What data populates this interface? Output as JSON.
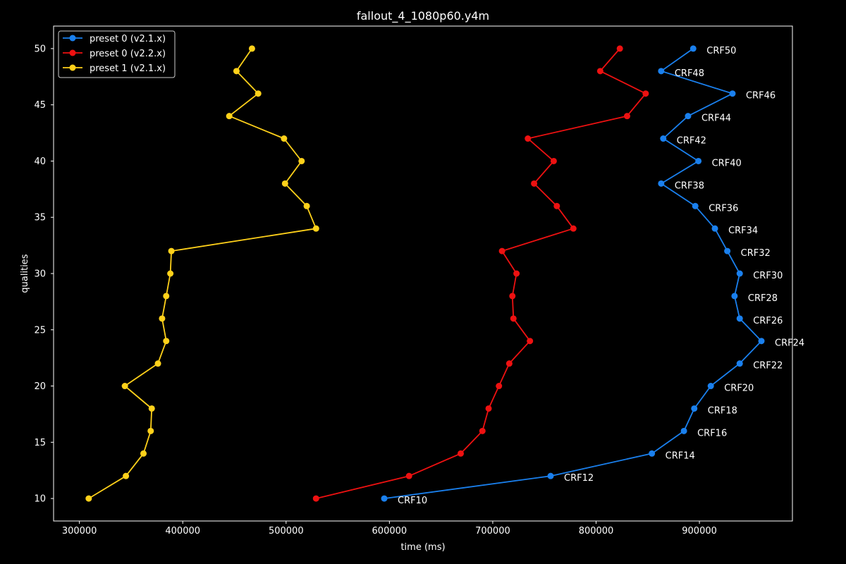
{
  "chart_data": {
    "type": "line",
    "title": "fallout_4_1080p60.y4m",
    "xlabel": "time (ms)",
    "ylabel": "qualities",
    "xlim": [
      275000,
      990000
    ],
    "ylim": [
      8,
      52
    ],
    "xticks": [
      300000,
      400000,
      500000,
      600000,
      700000,
      800000,
      900000
    ],
    "yticks": [
      10,
      15,
      20,
      25,
      30,
      35,
      40,
      45,
      50
    ],
    "grid": false,
    "legend_position": "top-left",
    "background": "#000000",
    "series": [
      {
        "name": "preset 0 (v2.1.x)",
        "color": "#1a80ee",
        "x": [
          595000,
          756000,
          854000,
          885000,
          895000,
          911000,
          939000,
          960000,
          939000,
          934000,
          939000,
          927000,
          915000,
          896000,
          863000,
          899000,
          865000,
          889000,
          932000,
          863000,
          894000
        ],
        "y": [
          10,
          12,
          14,
          16,
          18,
          20,
          22,
          24,
          26,
          28,
          30,
          32,
          34,
          36,
          38,
          40,
          42,
          44,
          46,
          48,
          50
        ],
        "labels": [
          "CRF10",
          "CRF12",
          "CRF14",
          "CRF16",
          "CRF18",
          "CRF20",
          "CRF22",
          "CRF24",
          "CRF26",
          "CRF28",
          "CRF30",
          "CRF32",
          "CRF34",
          "CRF36",
          "CRF38",
          "CRF40",
          "CRF42",
          "CRF44",
          "CRF46",
          "CRF48",
          "CRF50"
        ]
      },
      {
        "name": "preset 0 (v2.2.x)",
        "color": "#ee1111",
        "x": [
          529000,
          619000,
          669000,
          690000,
          696000,
          706000,
          716000,
          736000,
          720000,
          719000,
          723000,
          709000,
          778000,
          762000,
          740000,
          759000,
          734000,
          830000,
          848000,
          804000,
          823000
        ],
        "y": [
          10,
          12,
          14,
          16,
          18,
          20,
          22,
          24,
          26,
          28,
          30,
          32,
          34,
          36,
          38,
          40,
          42,
          44,
          46,
          48,
          50
        ]
      },
      {
        "name": "preset 1 (v2.1.x)",
        "color": "#ffd11a",
        "x": [
          309000,
          345000,
          362000,
          369000,
          370000,
          344000,
          376000,
          384000,
          380000,
          384000,
          388000,
          389000,
          529000,
          520000,
          499000,
          515000,
          498000,
          445000,
          473000,
          452000,
          467000
        ],
        "y": [
          10,
          12,
          14,
          16,
          18,
          20,
          22,
          24,
          26,
          28,
          30,
          32,
          34,
          36,
          38,
          40,
          42,
          44,
          46,
          48,
          50
        ]
      }
    ]
  }
}
